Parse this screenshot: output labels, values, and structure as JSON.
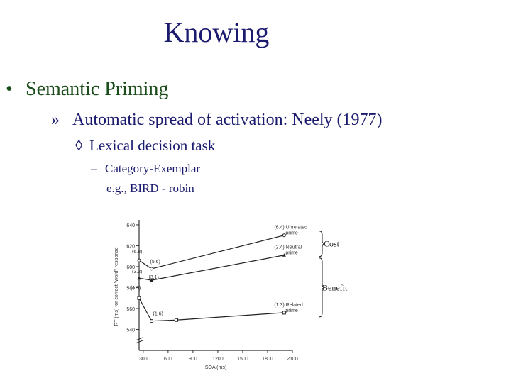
{
  "slide": {
    "title": "Knowing",
    "bullet_glyph": "•",
    "bullet1": "Semantic Priming",
    "sub_glyph": "»",
    "bullet2": "Automatic spread of activation: Neely (1977)",
    "diamond_glyph": "◊",
    "bullet3": "Lexical decision task",
    "dash_glyph": "–",
    "bullet4": "Category-Exemplar",
    "example": "e.g., BIRD - robin"
  },
  "chart_data": {
    "type": "line",
    "xlabel": "SOA (ms)",
    "ylabel": "RT (ms) for correct \"word\" response",
    "x": [
      250,
      400,
      700,
      2000
    ],
    "xticks": [
      300,
      600,
      900,
      1200,
      1500,
      1800,
      2100
    ],
    "yticks": [
      540,
      560,
      580,
      600,
      620,
      640
    ],
    "ylim": [
      520,
      642
    ],
    "series": [
      {
        "name": "Unrelated prime",
        "label": "(6.4) Unrelated prime",
        "x": [
          250,
          400,
          2000
        ],
        "values": [
          606,
          598,
          630
        ],
        "point_labels": [
          "(6.8)",
          "(5.6)",
          ""
        ]
      },
      {
        "name": "Neutral prime",
        "label": "(2.4) Neutral prime",
        "x": [
          250,
          400,
          2000
        ],
        "values": [
          589,
          587,
          611
        ],
        "point_labels": [
          "(3.2)",
          "(3.1)",
          ""
        ]
      },
      {
        "name": "Related prime",
        "label": "(1.3) Related prime",
        "x": [
          250,
          400,
          700,
          2000
        ],
        "values": [
          570,
          548,
          549,
          556
        ],
        "point_labels": [
          "(1.5)",
          "(1.6)",
          "",
          ""
        ]
      }
    ],
    "annotations": [
      {
        "text": "Cost"
      },
      {
        "text": "Benefit"
      }
    ]
  }
}
